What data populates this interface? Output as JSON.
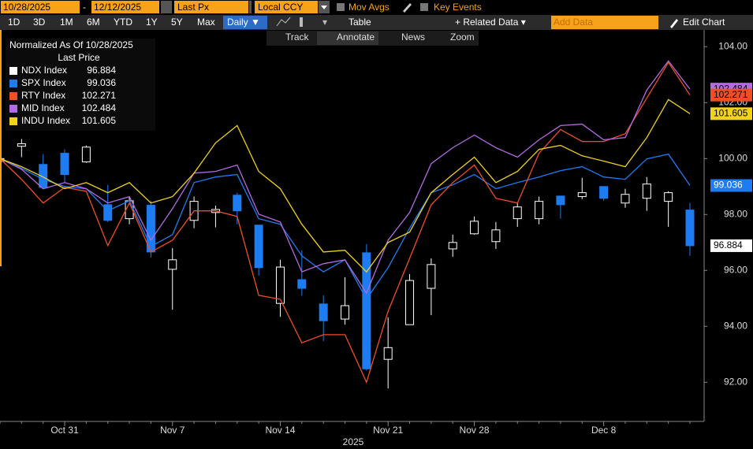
{
  "toolbar": {
    "start_date": "10/28/2025",
    "separator": "-",
    "end_date": "12/12/2025",
    "field": "Last Px",
    "currency": "Local CCY",
    "mov_avgs": "Mov Avgs",
    "key_events": "Key Events",
    "ranges": [
      "1D",
      "3D",
      "1M",
      "6M",
      "YTD",
      "1Y",
      "5Y",
      "Max"
    ],
    "frequency": "Daily ▼",
    "table": "Table",
    "related_data": "+ Related Data ▾",
    "add_data": "Add Data",
    "edit_chart": "Edit Chart",
    "tools": [
      "Track",
      "Annotate",
      "News",
      "Zoom"
    ]
  },
  "chart_data": {
    "type": "combo",
    "legend_title": "Normalized As Of 10/28/2025",
    "legend_subtitle": "Last Price",
    "xlabel": "2025",
    "legend": "upper left",
    "grid": false,
    "categories": [
      null,
      null,
      null,
      "Oct 31",
      null,
      null,
      null,
      null,
      "Nov 7",
      null,
      null,
      null,
      null,
      "Nov 14",
      null,
      null,
      null,
      null,
      "Nov 21",
      null,
      null,
      null,
      "Nov 28",
      null,
      null,
      null,
      null,
      null,
      "Dec 8",
      null,
      null,
      null,
      null
    ],
    "ylim": [
      90.6,
      104.6
    ],
    "yticks": [
      {
        "value": 92,
        "label": "92.00"
      },
      {
        "value": 94,
        "label": "94.00"
      },
      {
        "value": 96,
        "label": "96.00"
      },
      {
        "value": 98,
        "label": "98.00"
      },
      {
        "value": 100,
        "label": "100.00"
      },
      {
        "value": 102,
        "label": "102.00"
      },
      {
        "value": 104,
        "label": "104.00"
      }
    ],
    "series": [
      {
        "name": "NDX Index",
        "style": "candlestick",
        "color": "#ffffff",
        "down_color": "#1e7cf2",
        "open": [
          99.9,
          100.44,
          99.79,
          100.19,
          99.88,
          98.35,
          97.85,
          98.33,
          96.04,
          97.79,
          98.07,
          98.69,
          97.62,
          94.82,
          95.67,
          94.8,
          94.26,
          96.63,
          92.82,
          94.06,
          95.36,
          96.77,
          97.31,
          97.03,
          97.85,
          97.85,
          98.66,
          98.64,
          99.0,
          98.41,
          98.58,
          98.47,
          98.16
        ],
        "high": [
          100.2,
          100.7,
          100.16,
          100.33,
          100.47,
          99.06,
          98.64,
          98.49,
          96.8,
          98.64,
          98.32,
          98.78,
          97.62,
          96.38,
          96.72,
          95.11,
          95.76,
          96.94,
          94.32,
          95.87,
          96.43,
          97.28,
          97.93,
          97.73,
          98.41,
          98.64,
          98.66,
          99.31,
          99.0,
          98.92,
          99.34,
          98.83,
          98.41
        ],
        "low": [
          99.7,
          100.05,
          98.92,
          99.14,
          99.85,
          97.73,
          97.65,
          96.46,
          94.6,
          97.51,
          97.54,
          97.65,
          95.81,
          94.34,
          95.1,
          93.47,
          94.06,
          92.42,
          91.78,
          94.06,
          94.4,
          96.49,
          97.28,
          96.77,
          97.56,
          97.65,
          97.85,
          98.55,
          98.49,
          98.24,
          98.13,
          97.56,
          96.52
        ],
        "values": [
          100.0,
          100.53,
          98.97,
          99.43,
          100.41,
          97.79,
          98.49,
          96.66,
          96.38,
          98.47,
          98.18,
          98.13,
          96.1,
          96.12,
          95.36,
          94.2,
          94.74,
          92.48,
          93.24,
          95.64,
          96.21,
          97.0,
          97.76,
          97.45,
          98.27,
          98.47,
          98.35,
          98.78,
          98.58,
          98.72,
          99.09,
          98.78,
          96.884
        ]
      },
      {
        "name": "SPX Index",
        "style": "line",
        "color": "#1e7cf2",
        "values": [
          100.0,
          99.65,
          99.26,
          99.0,
          98.92,
          98.13,
          98.49,
          96.86,
          97.28,
          99.14,
          99.34,
          99.43,
          97.85,
          97.65,
          96.52,
          95.95,
          96.38,
          94.97,
          96.1,
          97.51,
          98.78,
          99.06,
          99.43,
          98.92,
          99.14,
          99.34,
          99.57,
          99.71,
          99.34,
          99.26,
          99.99,
          100.16,
          99.036
        ]
      },
      {
        "name": "RTY Index",
        "style": "line",
        "color": "#f04e23",
        "values": [
          100.0,
          99.26,
          98.41,
          98.97,
          98.83,
          96.89,
          98.41,
          96.66,
          97.08,
          98.13,
          98.13,
          97.93,
          95.11,
          94.97,
          93.41,
          93.7,
          93.7,
          92.0,
          94.54,
          96.43,
          98.35,
          99.14,
          99.77,
          98.58,
          98.41,
          100.19,
          101.04,
          100.61,
          100.61,
          100.89,
          102.16,
          103.44,
          102.271
        ]
      },
      {
        "name": "MID Index",
        "style": "line",
        "color": "#b36ae2",
        "values": [
          100.0,
          99.62,
          98.92,
          99.14,
          98.92,
          98.41,
          98.64,
          97.08,
          98.21,
          99.48,
          99.54,
          99.77,
          98.01,
          97.73,
          95.95,
          96.24,
          96.38,
          95.19,
          97.08,
          98.07,
          99.82,
          100.39,
          100.84,
          100.39,
          100.05,
          100.67,
          101.18,
          101.23,
          100.67,
          100.75,
          102.45,
          103.49,
          102.484
        ]
      },
      {
        "name": "INDU Index",
        "style": "line",
        "color": "#f2d21a",
        "values": [
          100.0,
          99.71,
          99.34,
          98.92,
          99.14,
          98.78,
          99.14,
          98.41,
          98.64,
          99.48,
          100.56,
          101.18,
          99.54,
          98.92,
          97.65,
          96.66,
          96.72,
          95.95,
          97.0,
          97.37,
          98.78,
          99.43,
          100.05,
          99.14,
          99.54,
          100.33,
          100.47,
          100.1,
          99.91,
          99.71,
          100.75,
          102.11,
          101.605
        ]
      }
    ]
  }
}
